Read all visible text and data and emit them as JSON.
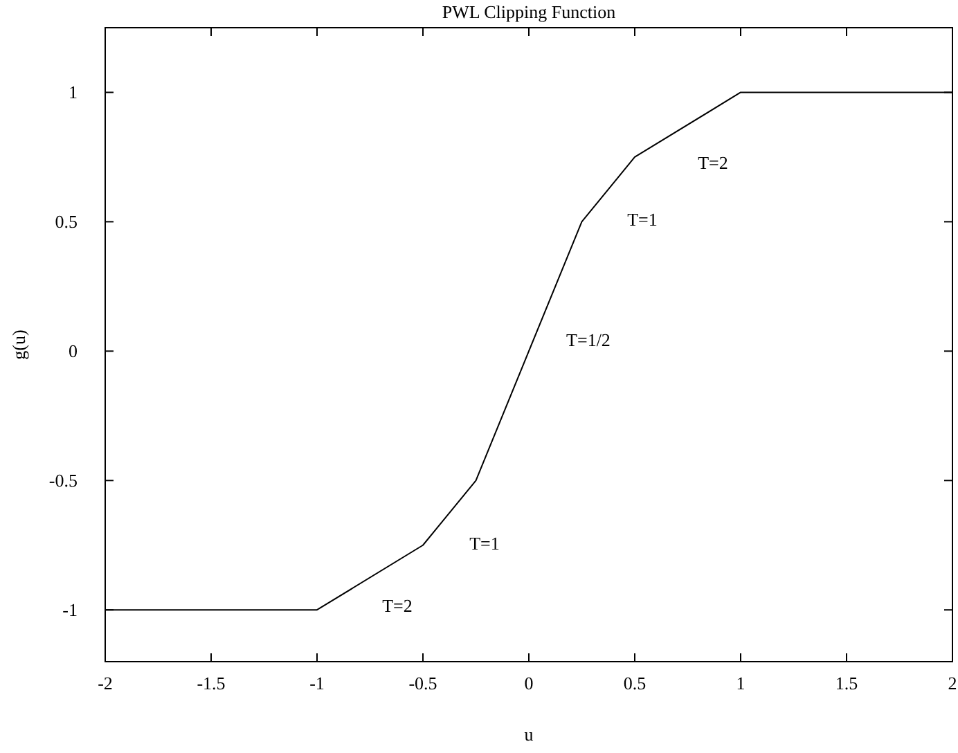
{
  "chart_data": {
    "type": "line",
    "title": "PWL Clipping Function",
    "xlabel": "u",
    "ylabel": "g(u)",
    "x": [
      -2,
      -1,
      -0.5,
      -0.25,
      0.25,
      0.5,
      1,
      2
    ],
    "series": [
      {
        "color": "#000000",
        "values": [
          -1,
          -1,
          -0.75,
          -0.5,
          0.5,
          0.75,
          1,
          1
        ]
      }
    ],
    "xlim": [
      -2,
      2
    ],
    "ylim": [
      -1.2,
      1.25
    ],
    "xticks": [
      -2,
      -1.5,
      -1,
      -0.5,
      0,
      0.5,
      1,
      1.5,
      2
    ],
    "yticks": [
      -1,
      -0.5,
      0,
      0.5,
      1
    ],
    "grid": false,
    "marker": "none",
    "line_style": "solid",
    "annotations": [
      "T=2",
      "T=1",
      "T=1/2",
      "T=1",
      "T=2"
    ]
  }
}
